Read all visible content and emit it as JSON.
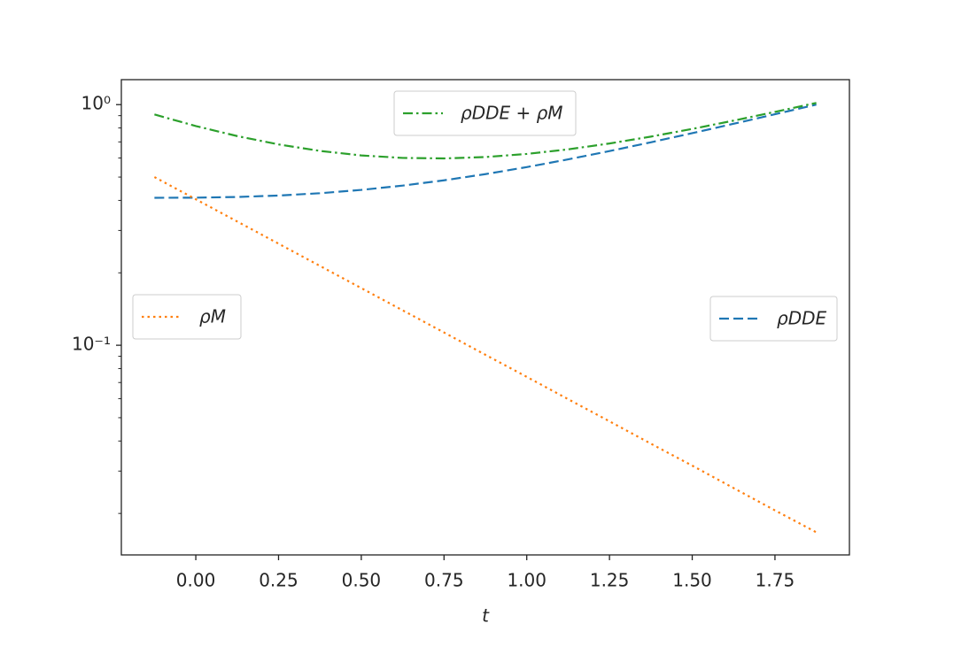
{
  "chart_data": {
    "type": "line",
    "xlabel": "t",
    "x": [
      -0.125,
      0,
      0.125,
      0.25,
      0.375,
      0.5,
      0.625,
      0.75,
      0.875,
      1.0,
      1.125,
      1.25,
      1.375,
      1.5,
      1.625,
      1.75,
      1.875
    ],
    "series": [
      {
        "name": "ρDDE",
        "color": "#1f77b4",
        "linestyle": "dashed",
        "legend": "center right",
        "values": [
          0.41,
          0.4106,
          0.4133,
          0.419,
          0.4284,
          0.4422,
          0.4608,
          0.4847,
          0.5143,
          0.55,
          0.5922,
          0.6412,
          0.6974,
          0.761,
          0.8326,
          0.9121,
          1.0
        ]
      },
      {
        "name": "ρM",
        "color": "#ff7f0e",
        "linestyle": "dotted",
        "legend": "center left",
        "values": [
          0.5,
          0.4043,
          0.3269,
          0.2643,
          0.2137,
          0.1728,
          0.1397,
          0.113,
          0.0913,
          0.0739,
          0.0597,
          0.0483,
          0.039,
          0.0316,
          0.0255,
          0.0206,
          0.0167
        ]
      },
      {
        "name": "ρDDE + ρM",
        "color": "#2ca02c",
        "linestyle": "dashdot",
        "legend": "upper center",
        "values": [
          0.91,
          0.8149,
          0.7402,
          0.6833,
          0.6421,
          0.615,
          0.6005,
          0.5977,
          0.6056,
          0.6239,
          0.6519,
          0.6895,
          0.7364,
          0.7926,
          0.8581,
          0.9327,
          1.0167
        ]
      }
    ],
    "xlim": [
      -0.225,
      1.975
    ],
    "xticks": [
      {
        "value": 0,
        "label": "0.00"
      },
      {
        "value": 0.25,
        "label": "0.25"
      },
      {
        "value": 0.5,
        "label": "0.50"
      },
      {
        "value": 0.75,
        "label": "0.75"
      },
      {
        "value": 1,
        "label": "1.00"
      },
      {
        "value": 1.25,
        "label": "1.25"
      },
      {
        "value": 1.5,
        "label": "1.50"
      },
      {
        "value": 1.75,
        "label": "1.75"
      }
    ],
    "ylim": [
      0.01345,
      1.27
    ],
    "yscale": "log",
    "yticks": [
      {
        "value": 0.1,
        "label": "10⁻¹"
      },
      {
        "value": 1,
        "label": "10⁰"
      }
    ],
    "yminorticks": [
      0.02,
      0.03,
      0.04,
      0.05,
      0.06,
      0.07,
      0.08,
      0.09,
      0.2,
      0.3,
      0.4,
      0.5,
      0.6,
      0.7,
      0.8,
      0.9
    ]
  }
}
